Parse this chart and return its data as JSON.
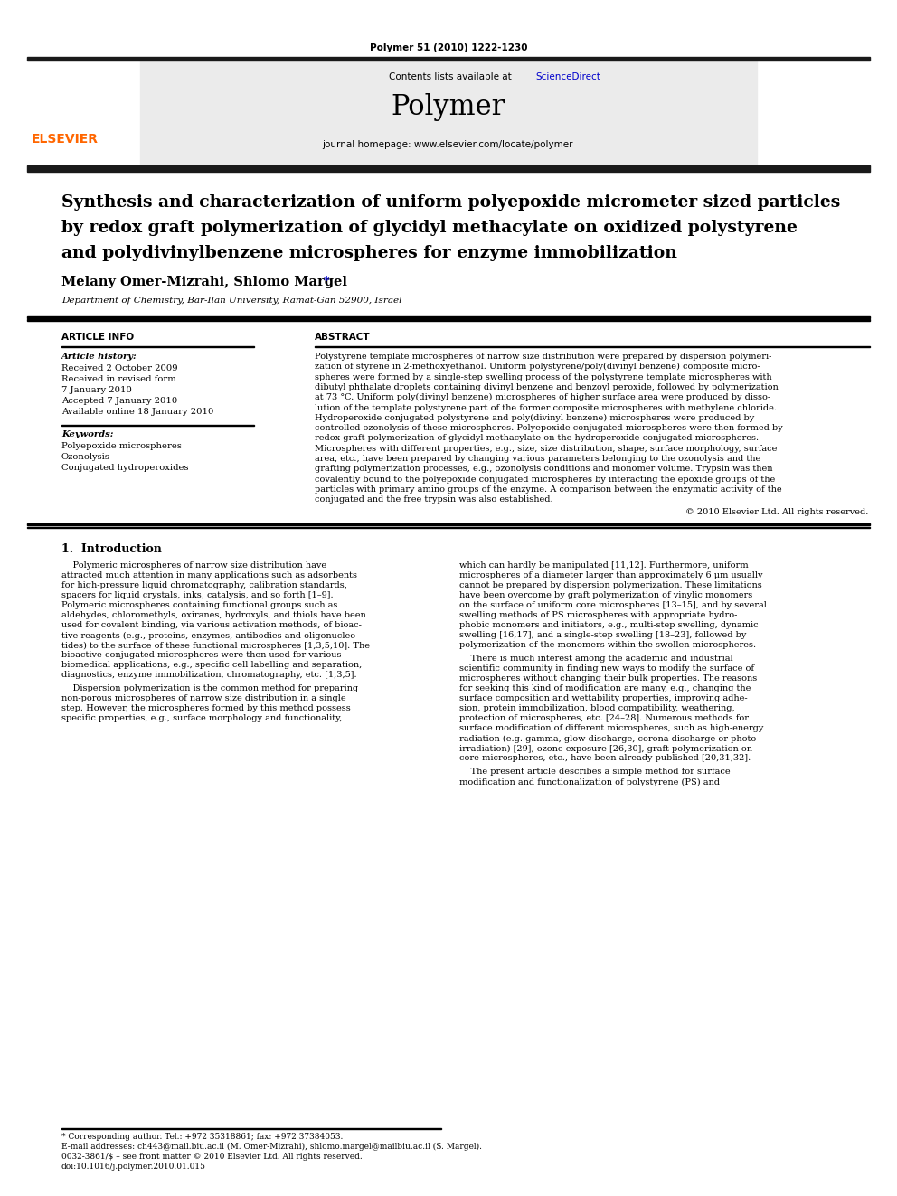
{
  "journal_citation": "Polymer 51 (2010) 1222-1230",
  "contents_line": "Contents lists available at",
  "sciencedirect": "ScienceDirect",
  "journal_name": "Polymer",
  "journal_homepage": "journal homepage: www.elsevier.com/locate/polymer",
  "title_line1": "Synthesis and characterization of uniform polyepoxide micrometer sized particles",
  "title_line2": "by redox graft polymerization of glycidyl methacylate on oxidized polystyrene",
  "title_line3": "and polydivinylbenzene microspheres for enzyme immobilization",
  "authors_main": "Melany Omer-Mizrahi, Shlomo Margel",
  "affiliation": "Department of Chemistry, Bar-Ilan University, Ramat-Gan 52900, Israel",
  "article_info_label": "ARTICLE INFO",
  "abstract_label": "ABSTRACT",
  "article_history_label": "Article history:",
  "received1": "Received 2 October 2009",
  "received2": "Received in revised form",
  "received3": "7 January 2010",
  "accepted": "Accepted 7 January 2010",
  "available": "Available online 18 January 2010",
  "keywords_label": "Keywords:",
  "kw1": "Polyepoxide microspheres",
  "kw2": "Ozonolysis",
  "kw3": "Conjugated hydroperoxides",
  "copyright": "© 2010 Elsevier Ltd. All rights reserved.",
  "intro_heading": "1.  Introduction",
  "footer_line1": "* Corresponding author. Tel.: +972 35318861; fax: +972 37384053.",
  "footer_line2": "E-mail addresses: ch443@mail.biu.ac.il (M. Omer-Mizrahi), shlomo.margel@mailbiu.ac.il (S. Margel).",
  "footer_line3": "0032-3861/$ – see front matter © 2010 Elsevier Ltd. All rights reserved.",
  "footer_line4": "doi:10.1016/j.polymer.2010.01.015",
  "bg_color": "#ffffff",
  "link_color": "#0000cc",
  "header_bar_color": "#1a1a1a",
  "elsevier_color": "#FF6600",
  "abs_lines": [
    "Polystyrene template microspheres of narrow size distribution were prepared by dispersion polymeri-",
    "zation of styrene in 2-methoxyethanol. Uniform polystyrene/poly(divinyl benzene) composite micro-",
    "spheres were formed by a single-step swelling process of the polystyrene template microspheres with",
    "dibutyl phthalate droplets containing divinyl benzene and benzoyl peroxide, followed by polymerization",
    "at 73 °C. Uniform poly(divinyl benzene) microspheres of higher surface area were produced by disso-",
    "lution of the template polystyrene part of the former composite microspheres with methylene chloride.",
    "Hydroperoxide conjugated polystyrene and poly(divinyl benzene) microspheres were produced by",
    "controlled ozonolysis of these microspheres. Polyepoxide conjugated microspheres were then formed by",
    "redox graft polymerization of glycidyl methacylate on the hydroperoxide-conjugated microspheres.",
    "Microspheres with different properties, e.g., size, size distribution, shape, surface morphology, surface",
    "area, etc., have been prepared by changing various parameters belonging to the ozonolysis and the",
    "grafting polymerization processes, e.g., ozonolysis conditions and monomer volume. Trypsin was then",
    "covalently bound to the polyepoxide conjugated microspheres by interacting the epoxide groups of the",
    "particles with primary amino groups of the enzyme. A comparison between the enzymatic activity of the",
    "conjugated and the free trypsin was also established."
  ],
  "intro_col1": [
    "    Polymeric microspheres of narrow size distribution have",
    "attracted much attention in many applications such as adsorbents",
    "for high-pressure liquid chromatography, calibration standards,",
    "spacers for liquid crystals, inks, catalysis, and so forth [1–9].",
    "Polymeric microspheres containing functional groups such as",
    "aldehydes, chloromethyls, oxiranes, hydroxyls, and thiols have been",
    "used for covalent binding, via various activation methods, of bioac-",
    "tive reagents (e.g., proteins, enzymes, antibodies and oligonucleo-",
    "tides) to the surface of these functional microspheres [1,3,5,10]. The",
    "bioactive-conjugated microspheres were then used for various",
    "biomedical applications, e.g., specific cell labelling and separation,",
    "diagnostics, enzyme immobilization, chromatography, etc. [1,3,5]."
  ],
  "intro_col1_p2": [
    "    Dispersion polymerization is the common method for preparing",
    "non-porous microspheres of narrow size distribution in a single",
    "step. However, the microspheres formed by this method possess",
    "specific properties, e.g., surface morphology and functionality,"
  ],
  "intro_col2": [
    "which can hardly be manipulated [11,12]. Furthermore, uniform",
    "microspheres of a diameter larger than approximately 6 μm usually",
    "cannot be prepared by dispersion polymerization. These limitations",
    "have been overcome by graft polymerization of vinylic monomers",
    "on the surface of uniform core microspheres [13–15], and by several",
    "swelling methods of PS microspheres with appropriate hydro-",
    "phobic monomers and initiators, e.g., multi-step swelling, dynamic",
    "swelling [16,17], and a single-step swelling [18–23], followed by",
    "polymerization of the monomers within the swollen microspheres."
  ],
  "intro_col2_p2": [
    "    There is much interest among the academic and industrial",
    "scientific community in finding new ways to modify the surface of",
    "microspheres without changing their bulk properties. The reasons",
    "for seeking this kind of modification are many, e.g., changing the",
    "surface composition and wettability properties, improving adhe-",
    "sion, protein immobilization, blood compatibility, weathering,",
    "protection of microspheres, etc. [24–28]. Numerous methods for",
    "surface modification of different microspheres, such as high-energy",
    "radiation (e.g. gamma, glow discharge, corona discharge or photo",
    "irradiation) [29], ozone exposure [26,30], graft polymerization on",
    "core microspheres, etc., have been already published [20,31,32]."
  ],
  "intro_col2_p3": [
    "    The present article describes a simple method for surface",
    "modification and functionalization of polystyrene (PS) and"
  ]
}
